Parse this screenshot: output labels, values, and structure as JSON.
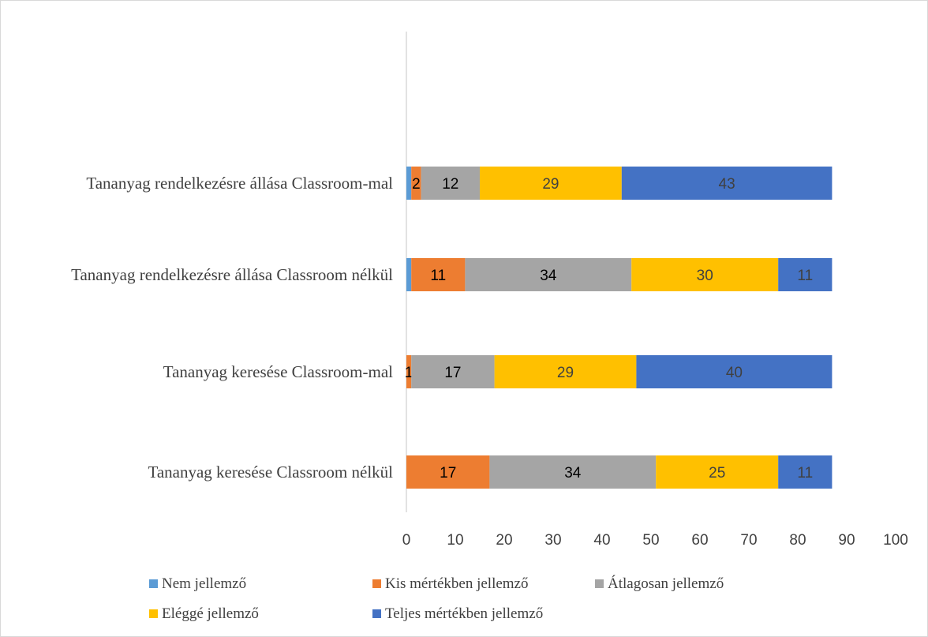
{
  "chart_data": {
    "type": "bar",
    "orientation": "horizontal",
    "stacked": true,
    "categories": [
      "Tananyag rendelkezésre állása Classroom-mal",
      "Tananyag rendelkezésre állása Classroom nélkül",
      "Tananyag keresése Classroom-mal",
      "Tananyag keresése Classroom nélkül"
    ],
    "series": [
      {
        "name": "Nem jellemző",
        "color": "#5b9bd5",
        "values": [
          1,
          1,
          0,
          0
        ],
        "labels": [
          "",
          "",
          "",
          ""
        ]
      },
      {
        "name": "Kis mértékben jellemző",
        "color": "#ed7d31",
        "values": [
          2,
          11,
          1,
          17
        ],
        "labels": [
          "2",
          "11",
          "1",
          "17"
        ]
      },
      {
        "name": "Átlagosan jellemző",
        "color": "#a5a5a5",
        "values": [
          12,
          34,
          17,
          34
        ],
        "labels": [
          "12",
          "34",
          "17",
          "34"
        ]
      },
      {
        "name": "Eléggé jellemző",
        "color": "#ffc000",
        "values": [
          29,
          30,
          29,
          25
        ],
        "labels": [
          "29",
          "30",
          "29",
          "25"
        ]
      },
      {
        "name": "Teljes mértékben jellemző",
        "color": "#4472c4",
        "values": [
          43,
          11,
          40,
          11
        ],
        "labels": [
          "43",
          "11",
          "40",
          "11"
        ]
      }
    ],
    "xlim": [
      0,
      100
    ],
    "xticks": [
      "0",
      "10",
      "20",
      "30",
      "40",
      "50",
      "60",
      "70",
      "80",
      "90",
      "100"
    ],
    "grid": false,
    "legend_position": "bottom"
  }
}
